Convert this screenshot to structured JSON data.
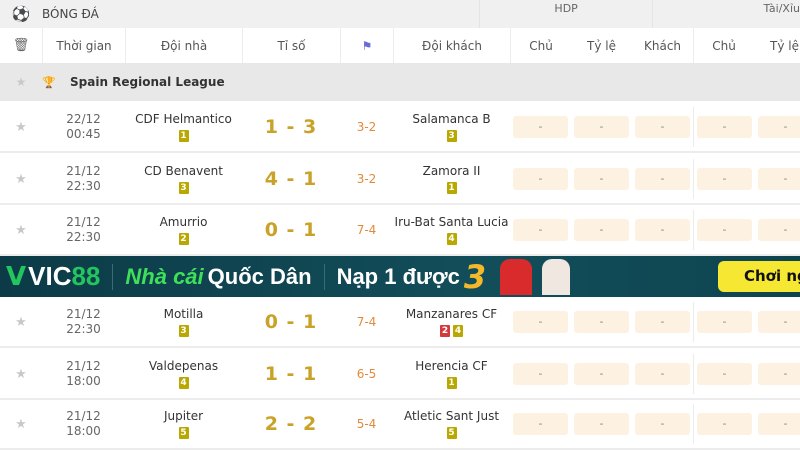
{
  "sport": {
    "label": "BÓNG ĐÁ",
    "icon": "soccer-ball-icon"
  },
  "groups": {
    "hdp": "HDP",
    "taixiu": "Tài/Xỉu"
  },
  "columns": {
    "time": "Thời gian",
    "home": "Đội nhà",
    "score": "Tỉ số",
    "corner_icon": "corner-flag-icon",
    "away": "Đội khách",
    "hdp_home": "Chủ",
    "hdp_ratio": "Tỷ lệ",
    "hdp_away": "Khách",
    "tx_home": "Chủ",
    "tx_ratio": "Tỷ lệ"
  },
  "league": {
    "name": "Spain Regional League"
  },
  "colors": {
    "score": "#c9a227",
    "corner": "#e08a3a",
    "badge_yellow": "#b9a800",
    "badge_red": "#d33b3b",
    "odds_bg": "#fdf1e2"
  },
  "matches": [
    {
      "date": "22/12",
      "time": "00:45",
      "home": "CDF Helmantico",
      "home_badges": [
        {
          "v": "1",
          "c": "yellow"
        }
      ],
      "score": "1 - 3",
      "corner": "3-2",
      "away": "Salamanca B",
      "away_badges": [
        {
          "v": "3",
          "c": "yellow"
        }
      ],
      "odds": [
        "-",
        "-",
        "-",
        "-",
        "-"
      ]
    },
    {
      "date": "21/12",
      "time": "22:30",
      "home": "CD Benavent",
      "home_badges": [
        {
          "v": "3",
          "c": "yellow"
        }
      ],
      "score": "4 - 1",
      "corner": "3-2",
      "away": "Zamora II",
      "away_badges": [
        {
          "v": "1",
          "c": "yellow"
        }
      ],
      "odds": [
        "-",
        "-",
        "-",
        "-",
        "-"
      ]
    },
    {
      "date": "21/12",
      "time": "22:30",
      "home": "Amurrio",
      "home_badges": [
        {
          "v": "2",
          "c": "yellow"
        }
      ],
      "score": "0 - 1",
      "corner": "7-4",
      "away": "Iru-Bat Santa Lucia",
      "away_badges": [
        {
          "v": "4",
          "c": "yellow"
        }
      ],
      "odds": [
        "-",
        "-",
        "-",
        "-",
        "-"
      ]
    },
    {
      "date": "21/12",
      "time": "22:30",
      "home": "Motilla",
      "home_badges": [
        {
          "v": "3",
          "c": "yellow"
        }
      ],
      "score": "0 - 1",
      "corner": "7-4",
      "away": "Manzanares CF",
      "away_badges": [
        {
          "v": "2",
          "c": "red"
        },
        {
          "v": "4",
          "c": "yellow"
        }
      ],
      "odds": [
        "-",
        "-",
        "-",
        "-",
        "-"
      ]
    },
    {
      "date": "21/12",
      "time": "18:00",
      "home": "Valdepenas",
      "home_badges": [
        {
          "v": "4",
          "c": "yellow"
        }
      ],
      "score": "1 - 1",
      "corner": "6-5",
      "away": "Herencia CF",
      "away_badges": [
        {
          "v": "1",
          "c": "yellow"
        }
      ],
      "odds": [
        "-",
        "-",
        "-",
        "-",
        "-"
      ]
    },
    {
      "date": "21/12",
      "time": "18:00",
      "home": "Jupiter",
      "home_badges": [
        {
          "v": "5",
          "c": "yellow"
        }
      ],
      "score": "2 - 2",
      "corner": "5-4",
      "away": "Atletic Sant Just",
      "away_badges": [
        {
          "v": "5",
          "c": "yellow"
        }
      ],
      "odds": [
        "-",
        "-",
        "-",
        "-",
        "-"
      ]
    }
  ],
  "banner": {
    "brand_v": "V",
    "brand": "VIC",
    "brand_num": "88",
    "slogan_a": "Nhà cái",
    "slogan_b": "Quốc Dân",
    "promo": "Nạp 1 được",
    "promo_num": "3",
    "cta": "Chơi ngay"
  }
}
